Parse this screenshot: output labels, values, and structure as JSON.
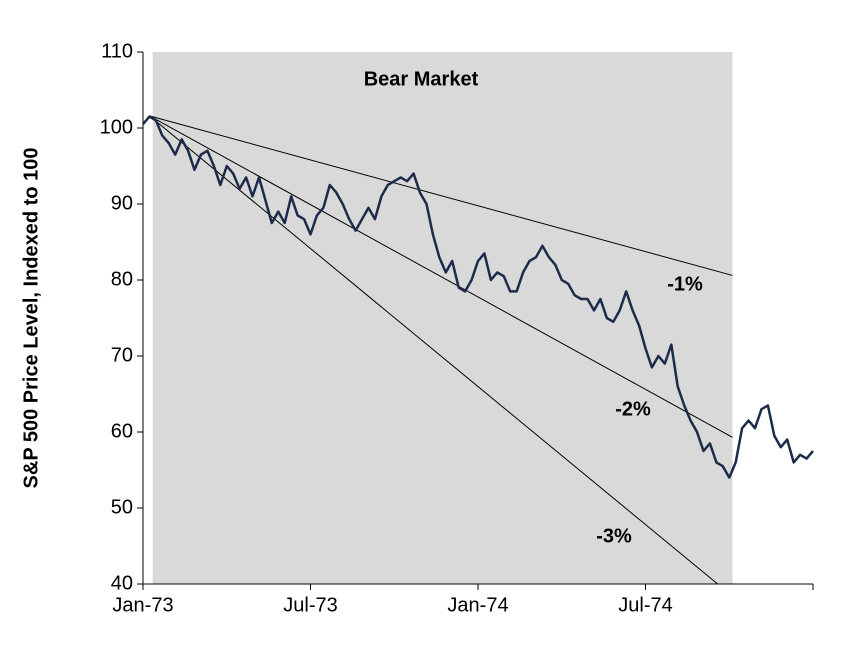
{
  "chart_data": {
    "type": "line",
    "y_label": "S&P 500 Price Level, Indexed to 100",
    "categories": [
      "Jan-73",
      null,
      null,
      null,
      null,
      null,
      null,
      null,
      null,
      null,
      null,
      null,
      null,
      null,
      null,
      null,
      null,
      null,
      null,
      null,
      null,
      null,
      null,
      null,
      null,
      null,
      "Jul-73",
      null,
      null,
      null,
      null,
      null,
      null,
      null,
      null,
      null,
      null,
      null,
      null,
      null,
      null,
      null,
      null,
      null,
      null,
      null,
      null,
      null,
      null,
      null,
      null,
      null,
      "Jan-74",
      null,
      null,
      null,
      null,
      null,
      null,
      null,
      null,
      null,
      null,
      null,
      null,
      null,
      null,
      null,
      null,
      null,
      null,
      null,
      null,
      null,
      null,
      null,
      null,
      null,
      "Jul-74",
      null,
      null,
      null,
      null,
      null,
      null,
      null,
      null,
      null,
      null,
      null,
      null,
      null,
      null,
      null,
      null,
      null,
      null,
      null,
      null,
      null,
      null,
      null,
      null,
      null,
      null
    ],
    "values": [
      100.5,
      101.5,
      101,
      99,
      98,
      96.5,
      98.5,
      97,
      94.5,
      96.5,
      97,
      95,
      92.5,
      95,
      94,
      92,
      93.5,
      91,
      93.5,
      90.5,
      87.5,
      89,
      87.5,
      91,
      88.5,
      88,
      86,
      88.5,
      89.5,
      92.5,
      91.5,
      90,
      88,
      86.5,
      88,
      89.5,
      88,
      91,
      92.5,
      93,
      93.5,
      93,
      94,
      91.5,
      90,
      86,
      83,
      81,
      82.5,
      79,
      78.5,
      80,
      82.5,
      83.5,
      80,
      81,
      80.5,
      78.5,
      78.5,
      81,
      82.5,
      83,
      84.5,
      83,
      82,
      80,
      79.5,
      78,
      77.5,
      77.5,
      76,
      77.5,
      75,
      74.5,
      76,
      78.5,
      76,
      74,
      71,
      68.5,
      70,
      69,
      71.5,
      66,
      63.5,
      61.5,
      60,
      57.5,
      58.5,
      56,
      55.5,
      54,
      56,
      60.5,
      61.5,
      60.5,
      63,
      63.5,
      59.5,
      58,
      59,
      56,
      57,
      56.5,
      57.5
    ],
    "color": "#1c2b4a",
    "ylim": [
      40,
      110
    ],
    "yticks": [
      40,
      50,
      60,
      70,
      80,
      90,
      100,
      110
    ],
    "shade": {
      "label": "Bear Market",
      "from": 1.5,
      "to": 91.5
    },
    "trend_lines": [
      {
        "label": "-1%",
        "start": [
          1,
          101.6
        ],
        "end": [
          91.5,
          80.6
        ]
      },
      {
        "label": "-2%",
        "start": [
          1,
          101.6
        ],
        "end": [
          91.5,
          59.3
        ]
      },
      {
        "label": "-3%",
        "start": [
          1,
          101.6
        ],
        "end": [
          89.2,
          40
        ]
      }
    ]
  }
}
